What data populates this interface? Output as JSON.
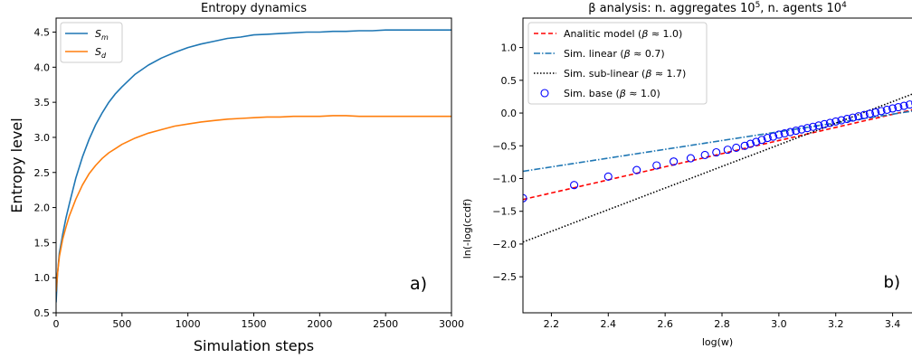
{
  "chart_data": [
    {
      "type": "line",
      "title": "Entropy dynamics",
      "xlabel": "Simulation steps",
      "ylabel": "Entropy level",
      "xlim": [
        0,
        3000
      ],
      "ylim": [
        0.5,
        4.7
      ],
      "xticks": [
        0,
        500,
        1000,
        1500,
        2000,
        2500,
        3000
      ],
      "yticks": [
        0.5,
        1.0,
        1.5,
        2.0,
        2.5,
        3.0,
        3.5,
        4.0,
        4.5
      ],
      "legend_position": "top-left",
      "panel_label": "a)",
      "grid": false,
      "series": [
        {
          "name": "S_m",
          "legend_main": "S",
          "legend_sub": "m",
          "color": "#1f77b4",
          "x": [
            0,
            10,
            25,
            50,
            75,
            100,
            150,
            200,
            250,
            300,
            350,
            400,
            450,
            500,
            600,
            700,
            800,
            900,
            1000,
            1100,
            1200,
            1300,
            1400,
            1500,
            1600,
            1700,
            1800,
            1900,
            2000,
            2100,
            2200,
            2300,
            2400,
            2500,
            2600,
            2700,
            2800,
            2900,
            3000
          ],
          "values": [
            0.65,
            1.05,
            1.35,
            1.62,
            1.85,
            2.05,
            2.42,
            2.72,
            2.97,
            3.18,
            3.35,
            3.5,
            3.62,
            3.72,
            3.9,
            4.03,
            4.13,
            4.21,
            4.28,
            4.33,
            4.37,
            4.41,
            4.43,
            4.46,
            4.47,
            4.48,
            4.49,
            4.5,
            4.5,
            4.51,
            4.51,
            4.52,
            4.52,
            4.53,
            4.53,
            4.53,
            4.53,
            4.53,
            4.53
          ]
        },
        {
          "name": "S_d",
          "legend_main": "S",
          "legend_sub": "d",
          "color": "#ff7f0e",
          "x": [
            0,
            10,
            25,
            50,
            75,
            100,
            150,
            200,
            250,
            300,
            350,
            400,
            450,
            500,
            600,
            700,
            800,
            900,
            1000,
            1100,
            1200,
            1300,
            1400,
            1500,
            1600,
            1700,
            1800,
            1900,
            2000,
            2100,
            2200,
            2300,
            2400,
            2500,
            2600,
            2700,
            2800,
            2900,
            3000
          ],
          "values": [
            0.8,
            1.05,
            1.3,
            1.55,
            1.72,
            1.88,
            2.12,
            2.32,
            2.48,
            2.6,
            2.7,
            2.78,
            2.84,
            2.9,
            2.99,
            3.06,
            3.11,
            3.16,
            3.19,
            3.22,
            3.24,
            3.26,
            3.27,
            3.28,
            3.29,
            3.29,
            3.3,
            3.3,
            3.3,
            3.31,
            3.31,
            3.3,
            3.3,
            3.3,
            3.3,
            3.3,
            3.3,
            3.3,
            3.3
          ]
        }
      ]
    },
    {
      "type": "scatter",
      "title_parts": [
        "β analysis: n. aggregates 10",
        "5",
        ", n. agents 10",
        "4"
      ],
      "xlabel": "log(w)",
      "ylabel": "ln(-log(ccdf)",
      "xlim": [
        2.1,
        3.5
      ],
      "ylim": [
        -3.05,
        1.45
      ],
      "xticks": [
        2.2,
        2.4,
        2.6,
        2.8,
        3.0,
        3.2,
        3.4
      ],
      "xtick_labels": [
        "2.2",
        "2.4",
        "2.6",
        "2.8",
        "3.0",
        "3.2",
        "3.4"
      ],
      "yticks": [
        -2.5,
        -2.0,
        -1.5,
        -1.0,
        -0.5,
        0.0,
        0.5,
        1.0
      ],
      "ytick_labels": [
        "−2.5",
        "−2.0",
        "−1.5",
        "−1.0",
        "−0.5",
        "0.0",
        "0.5",
        "1.0"
      ],
      "legend_position": "top-left",
      "panel_label": "b)",
      "grid": false,
      "series": [
        {
          "name": "Analitic model (β ≈ 1.0)",
          "legend_label": "Analitic model (",
          "legend_beta": "β",
          "legend_suffix": " ≈ 1.0)",
          "style": "dashed",
          "color": "#ff0000",
          "x": [
            2.1,
            3.5
          ],
          "values": [
            -1.32,
            0.08
          ]
        },
        {
          "name": "Sim. linear (β ≈ 0.7)",
          "legend_label": "Sim. linear (",
          "legend_beta": "β",
          "legend_suffix": " ≈ 0.7)",
          "style": "dashdot",
          "color": "#1f77b4",
          "x": [
            2.1,
            3.5
          ],
          "values": [
            -0.89,
            0.05
          ]
        },
        {
          "name": "Sim. sub-linear (β ≈ 1.7)",
          "legend_label": "Sim. sub-linear (",
          "legend_beta": "β",
          "legend_suffix": " ≈ 1.7)",
          "style": "dotted",
          "color": "#000000",
          "x": [
            2.1,
            3.5
          ],
          "values": [
            -1.97,
            0.34
          ]
        },
        {
          "name": "Sim. base (β ≈ 1.0)",
          "legend_label": "Sim. base (",
          "legend_beta": "β",
          "legend_suffix": " ≈ 1.0)",
          "style": "markers",
          "color": "#0000ff",
          "x": [
            2.1,
            2.28,
            2.4,
            2.5,
            2.57,
            2.63,
            2.69,
            2.74,
            2.78,
            2.82,
            2.85,
            2.88,
            2.9,
            2.92,
            2.94,
            2.96,
            2.98,
            3.0,
            3.02,
            3.04,
            3.06,
            3.08,
            3.1,
            3.12,
            3.14,
            3.16,
            3.18,
            3.2,
            3.22,
            3.24,
            3.26,
            3.28,
            3.3,
            3.32,
            3.34,
            3.36,
            3.38,
            3.4,
            3.42,
            3.44,
            3.46,
            3.48
          ],
          "values": [
            -1.3,
            -1.1,
            -0.97,
            -0.87,
            -0.8,
            -0.74,
            -0.69,
            -0.64,
            -0.6,
            -0.56,
            -0.53,
            -0.5,
            -0.47,
            -0.44,
            -0.41,
            -0.38,
            -0.36,
            -0.33,
            -0.31,
            -0.29,
            -0.27,
            -0.25,
            -0.23,
            -0.21,
            -0.19,
            -0.17,
            -0.15,
            -0.13,
            -0.11,
            -0.09,
            -0.07,
            -0.05,
            -0.03,
            -0.01,
            0.01,
            0.03,
            0.05,
            0.07,
            0.09,
            0.11,
            0.13,
            0.15
          ]
        }
      ]
    }
  ]
}
